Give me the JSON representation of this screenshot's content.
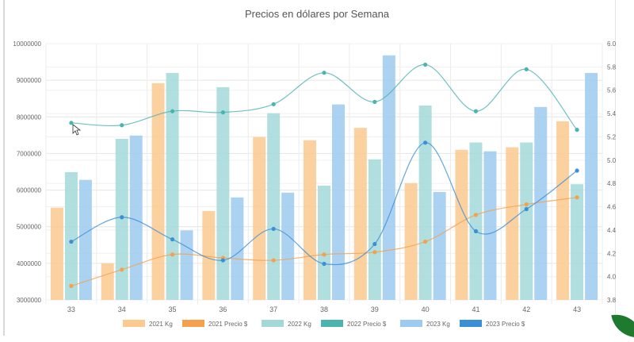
{
  "chart_data": {
    "type": "bar",
    "title": "Precios en dólares por Semana",
    "categories": [
      "33",
      "34",
      "35",
      "36",
      "37",
      "38",
      "39",
      "40",
      "41",
      "42",
      "43"
    ],
    "y_left": {
      "min": 3000000,
      "max": 10000000,
      "step": 1000000,
      "ticks": [
        "3000000",
        "4000000",
        "5000000",
        "6000000",
        "7000000",
        "8000000",
        "9000000",
        "10000000"
      ]
    },
    "y_right": {
      "min": 3.8,
      "max": 6.0,
      "step": 0.2,
      "ticks": [
        "3.8",
        "4.0",
        "4.2",
        "4.4",
        "4.6",
        "4.8",
        "5.0",
        "5.2",
        "5.4",
        "5.6",
        "5.8",
        "6.0"
      ]
    },
    "grid": true,
    "legend_position": "bottom",
    "series": [
      {
        "name": "2021 Kg",
        "kind": "bar",
        "axis": "left",
        "color": "#fcc98f",
        "values": [
          5520000,
          4000000,
          8920000,
          5430000,
          7450000,
          7360000,
          7700000,
          6190000,
          7100000,
          7170000,
          7880000
        ]
      },
      {
        "name": "2021 Precio $",
        "kind": "line",
        "axis": "right",
        "color": "#f5a04c",
        "values": [
          3.92,
          4.06,
          4.19,
          4.16,
          4.14,
          4.19,
          4.21,
          4.3,
          4.53,
          4.62,
          4.68
        ]
      },
      {
        "name": "2022 Kg",
        "kind": "bar",
        "axis": "left",
        "color": "#a3d8d8",
        "values": [
          6490000,
          7400000,
          9200000,
          8810000,
          8100000,
          6120000,
          6840000,
          8310000,
          7300000,
          7300000,
          6160000
        ]
      },
      {
        "name": "2022 Precio $",
        "kind": "line",
        "axis": "right",
        "color": "#4bb3b0",
        "values": [
          5.32,
          5.3,
          5.42,
          5.41,
          5.48,
          5.75,
          5.5,
          5.82,
          5.42,
          5.78,
          5.26
        ]
      },
      {
        "name": "2023 Kg",
        "kind": "bar",
        "axis": "left",
        "color": "#9dcaf0",
        "values": [
          6280000,
          7490000,
          4900000,
          5800000,
          5930000,
          8340000,
          9680000,
          5950000,
          7060000,
          8270000,
          9200000
        ]
      },
      {
        "name": "2023 Precio $",
        "kind": "line",
        "axis": "right",
        "color": "#3a8fd6",
        "values": [
          4.3,
          4.51,
          4.32,
          4.14,
          4.41,
          4.11,
          4.28,
          5.15,
          4.39,
          4.58,
          4.91
        ]
      }
    ]
  }
}
